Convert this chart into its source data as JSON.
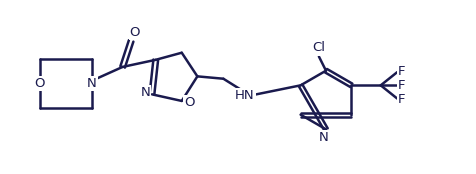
{
  "bg_color": "#ffffff",
  "line_color": "#1a1a4e",
  "line_width": 1.8,
  "font_size": 9.5,
  "fig_width": 4.77,
  "fig_height": 1.74,
  "xlim": [
    0,
    10
  ],
  "ylim": [
    0,
    3.65
  ]
}
